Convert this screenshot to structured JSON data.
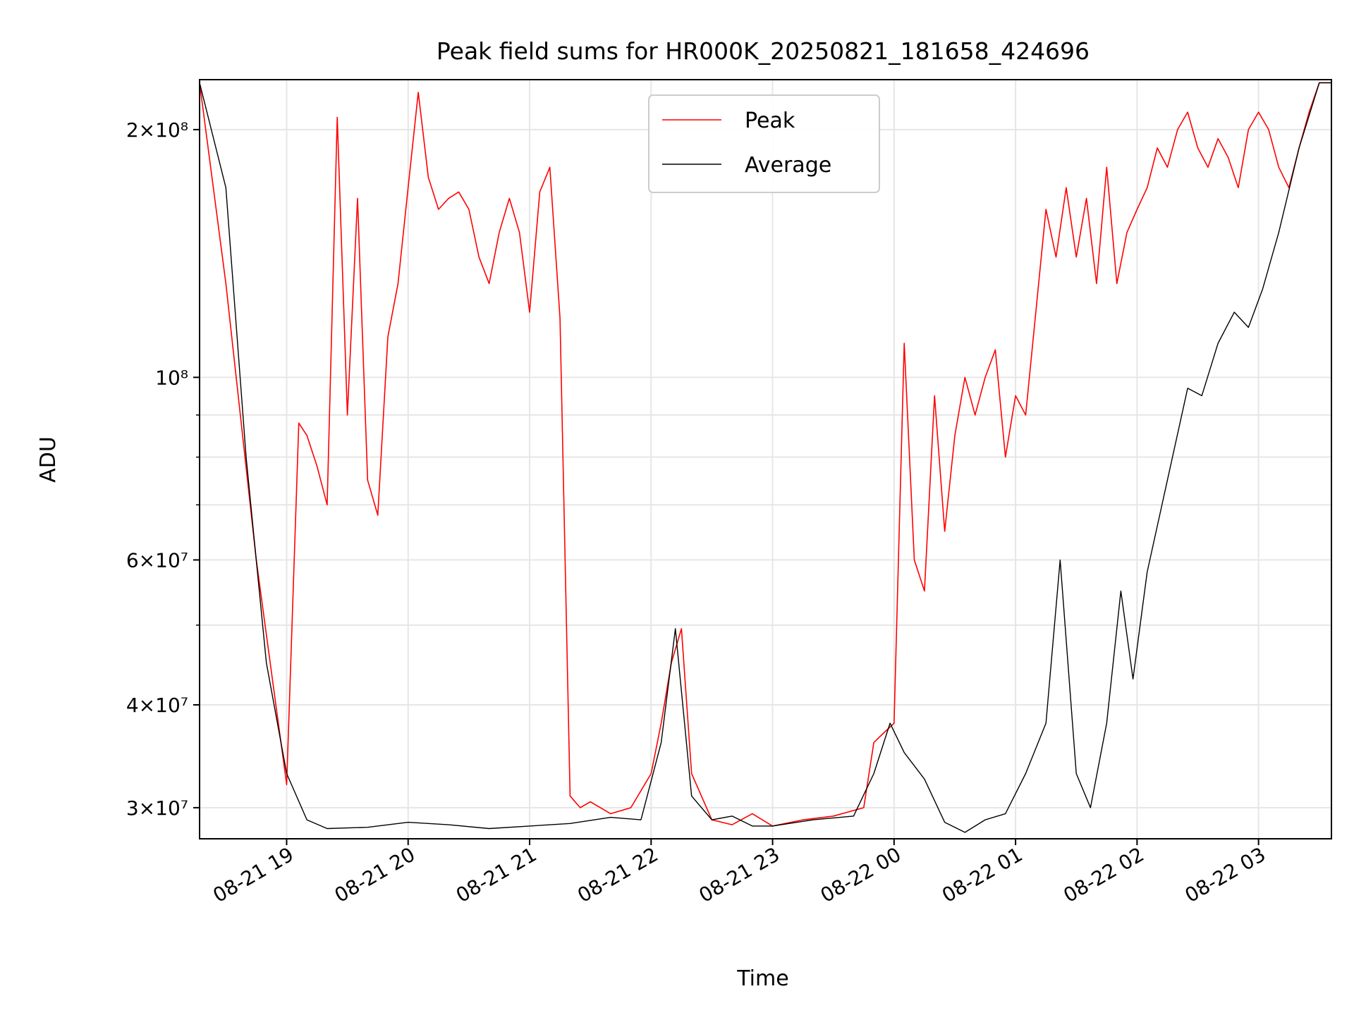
{
  "chart_data": {
    "type": "line",
    "title": "Peak field sums for HR000K_20250821_181658_424696",
    "xlabel": "Time",
    "ylabel": "ADU",
    "yscale": "log",
    "ylim": [
      27500000,
      230000000
    ],
    "xlim": [
      "2025-08-21 18:17",
      "2025-08-22 03:36"
    ],
    "grid": true,
    "legend_position": "top-center",
    "x_ticks": [
      {
        "t": "2025-08-21 19:00",
        "label": "08-21 19"
      },
      {
        "t": "2025-08-21 20:00",
        "label": "08-21 20"
      },
      {
        "t": "2025-08-21 21:00",
        "label": "08-21 21"
      },
      {
        "t": "2025-08-21 22:00",
        "label": "08-21 22"
      },
      {
        "t": "2025-08-21 23:00",
        "label": "08-21 23"
      },
      {
        "t": "2025-08-22 00:00",
        "label": "08-22 00"
      },
      {
        "t": "2025-08-22 01:00",
        "label": "08-22 01"
      },
      {
        "t": "2025-08-22 02:00",
        "label": "08-22 02"
      },
      {
        "t": "2025-08-22 03:00",
        "label": "08-22 03"
      }
    ],
    "y_ticks": [
      {
        "value": 30000000,
        "label": "3×10⁷"
      },
      {
        "value": 40000000,
        "label": "4×10⁷"
      },
      {
        "value": 60000000,
        "label": "6×10⁷"
      },
      {
        "value": 100000000,
        "label": "10⁸"
      },
      {
        "value": 200000000,
        "label": "2×10⁸"
      }
    ],
    "y_minor_ticks": [
      50000000,
      70000000,
      80000000,
      90000000
    ],
    "series": [
      {
        "name": "Peak",
        "color": "#ff0000",
        "x": [
          "2025-08-21 18:17",
          "2025-08-21 18:30",
          "2025-08-21 18:45",
          "2025-08-21 19:00",
          "2025-08-21 19:06",
          "2025-08-21 19:10",
          "2025-08-21 19:15",
          "2025-08-21 19:20",
          "2025-08-21 19:25",
          "2025-08-21 19:30",
          "2025-08-21 19:35",
          "2025-08-21 19:40",
          "2025-08-21 19:45",
          "2025-08-21 19:50",
          "2025-08-21 19:55",
          "2025-08-21 20:00",
          "2025-08-21 20:05",
          "2025-08-21 20:10",
          "2025-08-21 20:15",
          "2025-08-21 20:20",
          "2025-08-21 20:25",
          "2025-08-21 20:30",
          "2025-08-21 20:35",
          "2025-08-21 20:40",
          "2025-08-21 20:45",
          "2025-08-21 20:50",
          "2025-08-21 20:55",
          "2025-08-21 21:00",
          "2025-08-21 21:05",
          "2025-08-21 21:10",
          "2025-08-21 21:15",
          "2025-08-21 21:20",
          "2025-08-21 21:25",
          "2025-08-21 21:30",
          "2025-08-21 21:40",
          "2025-08-21 21:50",
          "2025-08-21 22:00",
          "2025-08-21 22:05",
          "2025-08-21 22:10",
          "2025-08-21 22:15",
          "2025-08-21 22:20",
          "2025-08-21 22:30",
          "2025-08-21 22:40",
          "2025-08-21 22:50",
          "2025-08-21 23:00",
          "2025-08-21 23:15",
          "2025-08-21 23:30",
          "2025-08-21 23:45",
          "2025-08-21 23:50",
          "2025-08-21 23:55",
          "2025-08-22 00:00",
          "2025-08-22 00:05",
          "2025-08-22 00:10",
          "2025-08-22 00:15",
          "2025-08-22 00:20",
          "2025-08-22 00:25",
          "2025-08-22 00:30",
          "2025-08-22 00:35",
          "2025-08-22 00:40",
          "2025-08-22 00:45",
          "2025-08-22 00:50",
          "2025-08-22 00:55",
          "2025-08-22 01:00",
          "2025-08-22 01:05",
          "2025-08-22 01:10",
          "2025-08-22 01:15",
          "2025-08-22 01:20",
          "2025-08-22 01:25",
          "2025-08-22 01:30",
          "2025-08-22 01:35",
          "2025-08-22 01:40",
          "2025-08-22 01:45",
          "2025-08-22 01:50",
          "2025-08-22 01:55",
          "2025-08-22 02:00",
          "2025-08-22 02:05",
          "2025-08-22 02:10",
          "2025-08-22 02:15",
          "2025-08-22 02:20",
          "2025-08-22 02:25",
          "2025-08-22 02:30",
          "2025-08-22 02:35",
          "2025-08-22 02:40",
          "2025-08-22 02:45",
          "2025-08-22 02:50",
          "2025-08-22 02:55",
          "2025-08-22 03:00",
          "2025-08-22 03:05",
          "2025-08-22 03:10",
          "2025-08-22 03:15",
          "2025-08-22 03:20",
          "2025-08-22 03:25",
          "2025-08-22 03:30",
          "2025-08-22 03:36"
        ],
        "values": [
          228000000,
          130000000,
          60000000,
          32000000,
          88000000,
          85000000,
          78000000,
          70000000,
          207000000,
          90000000,
          165000000,
          75000000,
          68000000,
          112000000,
          130000000,
          170000000,
          222000000,
          175000000,
          160000000,
          165000000,
          168000000,
          160000000,
          140000000,
          130000000,
          150000000,
          165000000,
          150000000,
          120000000,
          168000000,
          180000000,
          118000000,
          31000000,
          30000000,
          30500000,
          29500000,
          30000000,
          33000000,
          38000000,
          45000000,
          49500000,
          33000000,
          29000000,
          28600000,
          29500000,
          28500000,
          29000000,
          29300000,
          30000000,
          36000000,
          37000000,
          38000000,
          110000000,
          60000000,
          55000000,
          95000000,
          65000000,
          85000000,
          100000000,
          90000000,
          100000000,
          108000000,
          80000000,
          95000000,
          90000000,
          120000000,
          160000000,
          140000000,
          170000000,
          140000000,
          165000000,
          130000000,
          180000000,
          130000000,
          150000000,
          160000000,
          170000000,
          190000000,
          180000000,
          200000000,
          210000000,
          190000000,
          180000000,
          195000000,
          185000000,
          170000000,
          200000000,
          210000000,
          200000000,
          180000000,
          170000000,
          190000000,
          210000000,
          228000000,
          228000000
        ]
      },
      {
        "name": "Average",
        "color": "#000000",
        "x": [
          "2025-08-21 18:17",
          "2025-08-21 18:30",
          "2025-08-21 18:40",
          "2025-08-21 18:50",
          "2025-08-21 19:00",
          "2025-08-21 19:10",
          "2025-08-21 19:20",
          "2025-08-21 19:40",
          "2025-08-21 20:00",
          "2025-08-21 20:20",
          "2025-08-21 20:40",
          "2025-08-21 21:00",
          "2025-08-21 21:20",
          "2025-08-21 21:40",
          "2025-08-21 21:55",
          "2025-08-21 22:05",
          "2025-08-21 22:12",
          "2025-08-21 22:20",
          "2025-08-21 22:30",
          "2025-08-21 22:40",
          "2025-08-21 22:50",
          "2025-08-21 23:00",
          "2025-08-21 23:20",
          "2025-08-21 23:40",
          "2025-08-21 23:50",
          "2025-08-21 23:58",
          "2025-08-22 00:05",
          "2025-08-22 00:15",
          "2025-08-22 00:25",
          "2025-08-22 00:35",
          "2025-08-22 00:45",
          "2025-08-22 00:55",
          "2025-08-22 01:05",
          "2025-08-22 01:15",
          "2025-08-22 01:22",
          "2025-08-22 01:30",
          "2025-08-22 01:37",
          "2025-08-22 01:45",
          "2025-08-22 01:52",
          "2025-08-22 01:58",
          "2025-08-22 02:05",
          "2025-08-22 02:15",
          "2025-08-22 02:25",
          "2025-08-22 02:32",
          "2025-08-22 02:40",
          "2025-08-22 02:48",
          "2025-08-22 02:55",
          "2025-08-22 03:02",
          "2025-08-22 03:10",
          "2025-08-22 03:20",
          "2025-08-22 03:30",
          "2025-08-22 03:36"
        ],
        "values": [
          228000000,
          170000000,
          80000000,
          45000000,
          33000000,
          29000000,
          28300000,
          28400000,
          28800000,
          28600000,
          28300000,
          28500000,
          28700000,
          29200000,
          29000000,
          36000000,
          49500000,
          31000000,
          29000000,
          29300000,
          28500000,
          28500000,
          29000000,
          29300000,
          33000000,
          38000000,
          35000000,
          32500000,
          28800000,
          28000000,
          29000000,
          29500000,
          33000000,
          38000000,
          60000000,
          33000000,
          30000000,
          38000000,
          55000000,
          43000000,
          58000000,
          75000000,
          97000000,
          95000000,
          110000000,
          120000000,
          115000000,
          128000000,
          150000000,
          190000000,
          228000000,
          228000000
        ]
      }
    ]
  }
}
